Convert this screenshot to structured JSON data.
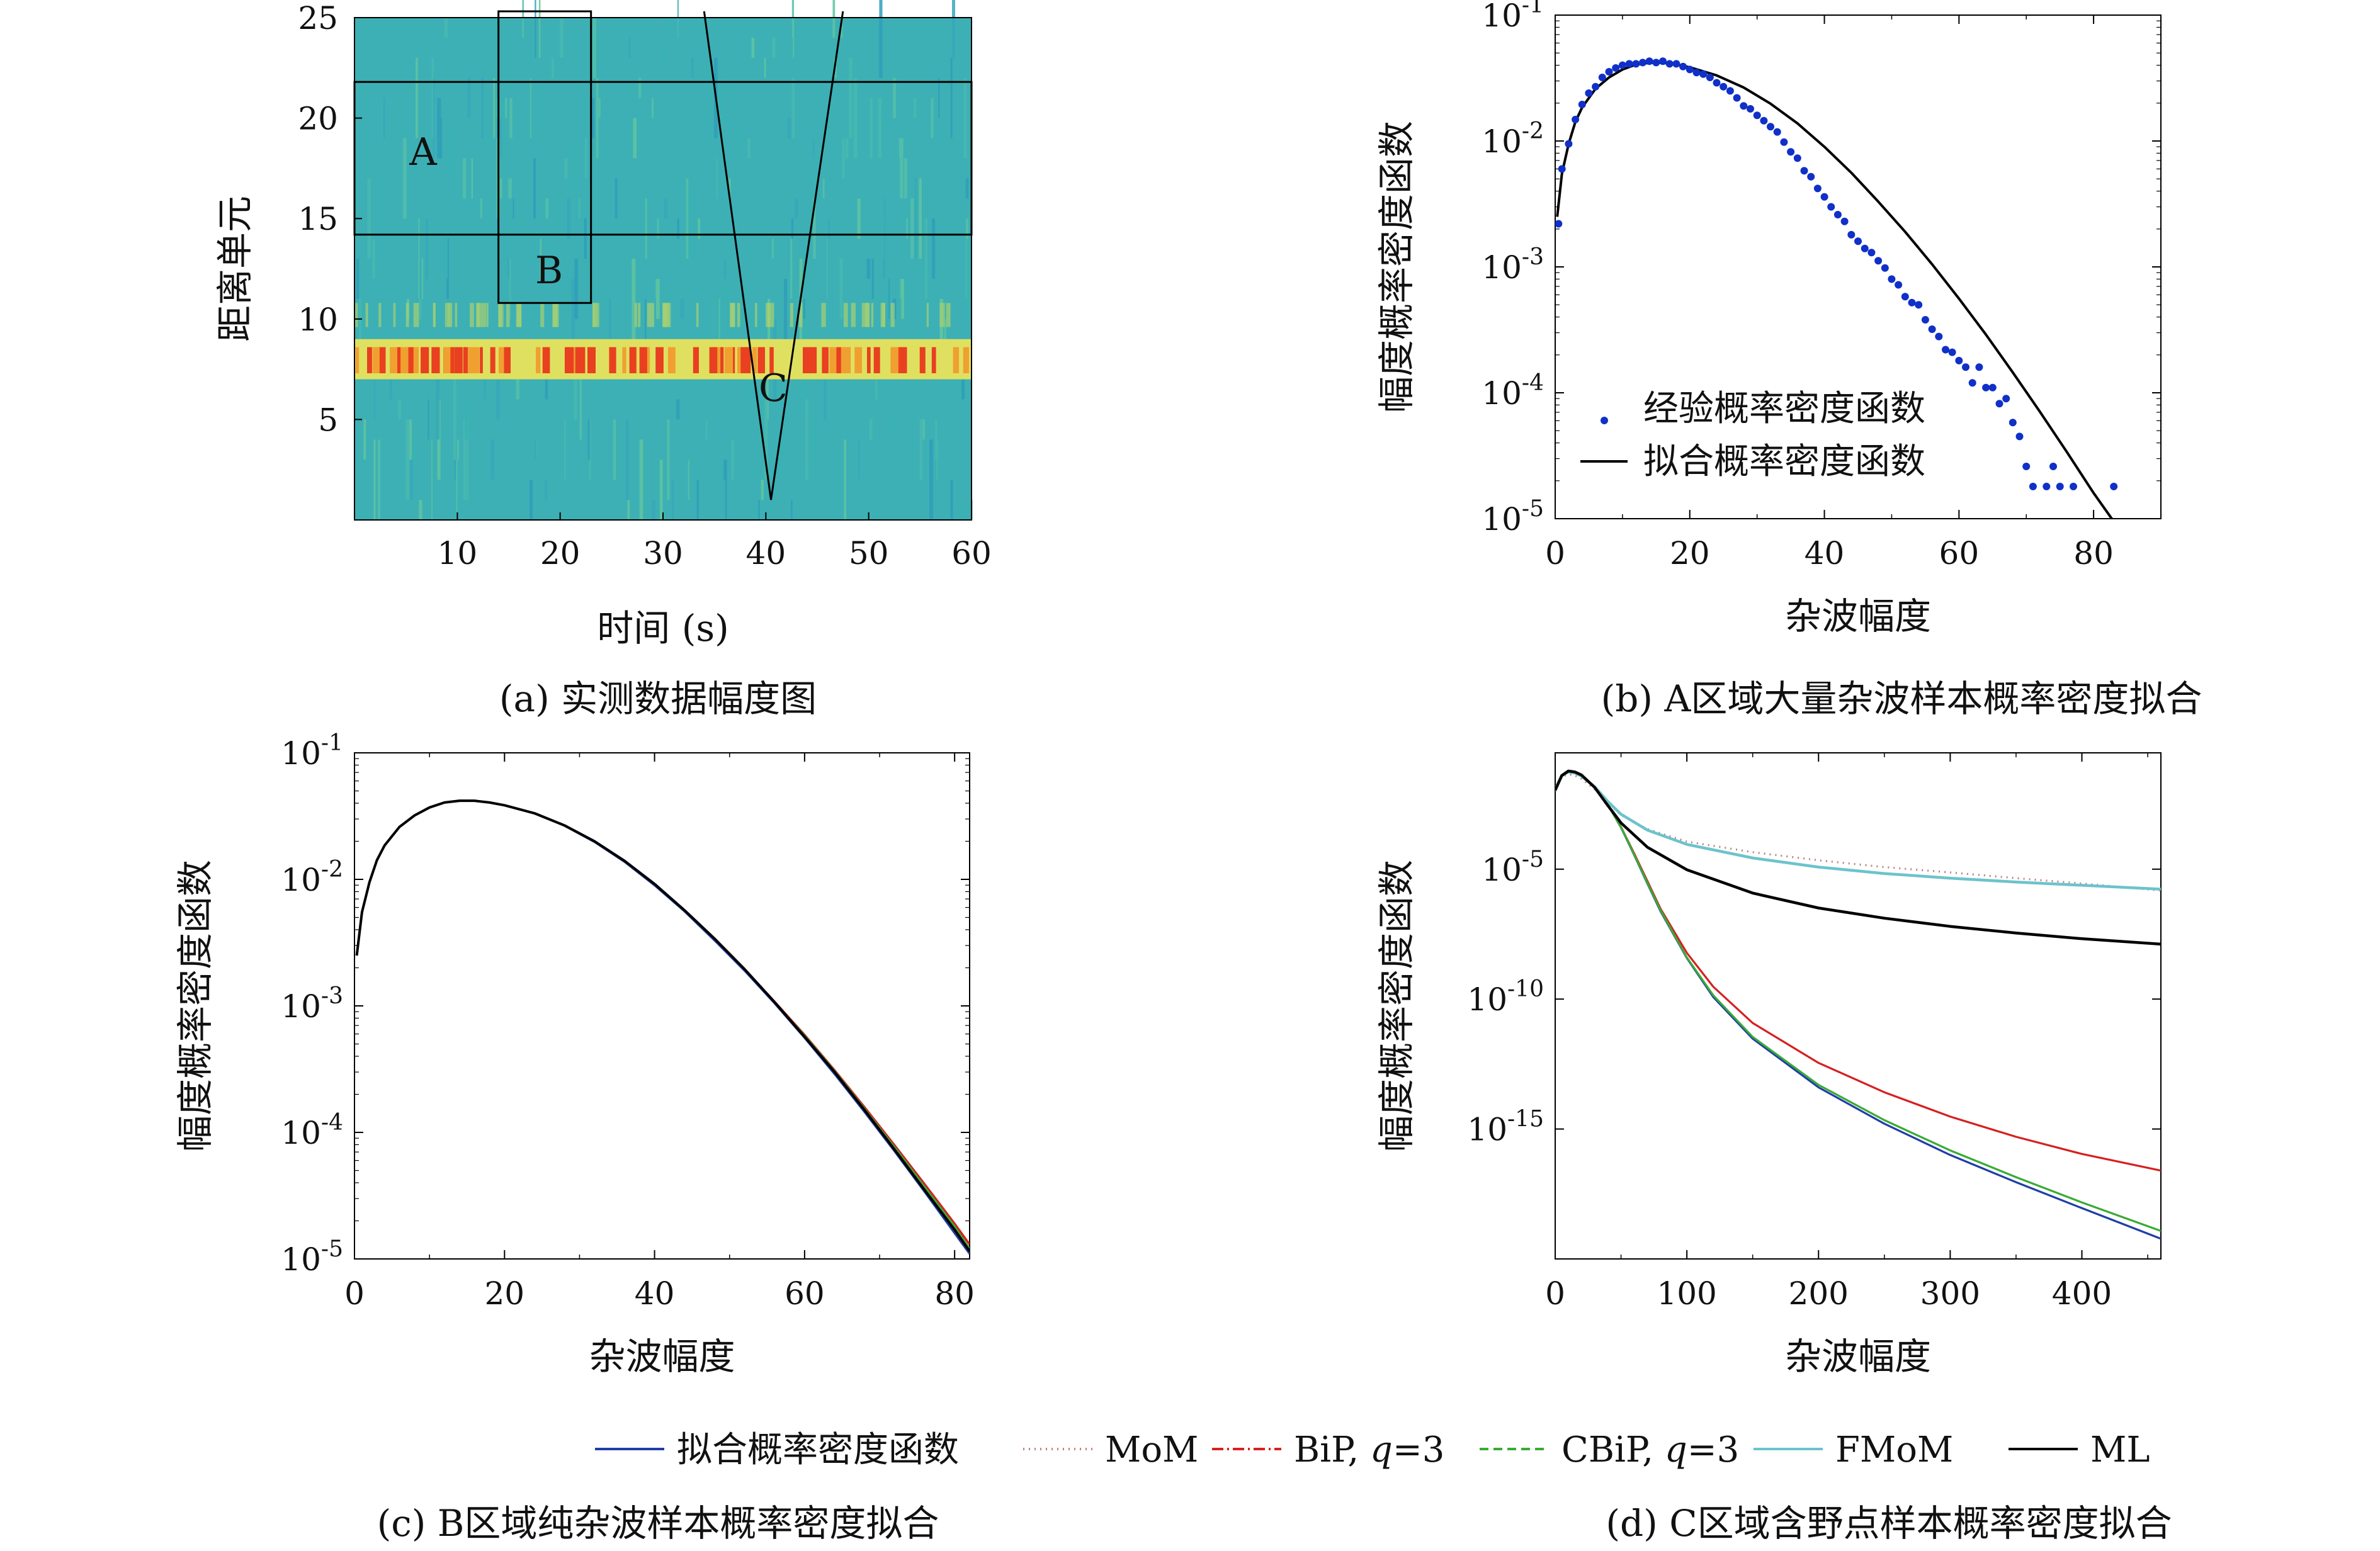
{
  "captions": {
    "a": "(a) 实测数据幅度图",
    "b": "(b)  A区域大量杂波样本概率密度拟合",
    "c": "(c) B区域纯杂波样本概率密度拟合",
    "d": "(d) C区域含野点样本概率密度拟合"
  },
  "legend_bottom": {
    "items": [
      {
        "label": "拟合概率密度函数",
        "color": "#1f3fa6",
        "dash": ""
      },
      {
        "label": "MoM",
        "color": "#c08080",
        "dash": "2,7"
      },
      {
        "label": "BiP, q=3",
        "label_main": "BiP, ",
        "label_q": "q",
        "label_rest": "=3",
        "color": "#d62020",
        "dash": "18,6,3,6"
      },
      {
        "label": "CBiP, q=3",
        "label_main": "CBiP, ",
        "label_q": "q",
        "label_rest": "=3",
        "color": "#3aaa35",
        "dash": "14,8"
      },
      {
        "label": "FMoM",
        "color": "#6cc3cc",
        "dash": ""
      },
      {
        "label": "ML",
        "color": "#000000",
        "dash": ""
      }
    ]
  },
  "chart_data": [
    {
      "id": "a",
      "type": "heatmap",
      "xlabel": "时间 (s)",
      "ylabel": "距离单元",
      "xlim": [
        0,
        60
      ],
      "ylim": [
        0,
        25
      ],
      "xticks": [
        10,
        20,
        30,
        40,
        50,
        60
      ],
      "yticks": [
        5,
        10,
        15,
        20,
        25
      ],
      "strong_band_rows": [
        7,
        8
      ],
      "regions": [
        {
          "label": "A",
          "shape": "rect",
          "x": [
            0,
            60
          ],
          "y": [
            14.2,
            21.8
          ]
        },
        {
          "label": "B",
          "shape": "rect",
          "x": [
            14,
            23
          ],
          "y": [
            10.8,
            25.5
          ]
        },
        {
          "label": "C",
          "shape": "triangle",
          "points": [
            [
              34,
              25.5
            ],
            [
              40.5,
              1
            ],
            [
              47.5,
              25.5
            ]
          ]
        }
      ],
      "colors": {
        "background": "#3cb0b5",
        "band_low": "#e0e060",
        "band_high": "#e84020"
      }
    },
    {
      "id": "b",
      "type": "scatter",
      "xlabel": "杂波幅度",
      "ylabel": "幅度概率密度函数",
      "xlim": [
        0,
        90
      ],
      "ylim": [
        1e-05,
        0.1
      ],
      "yscale": "log",
      "xticks": [
        0,
        20,
        40,
        60,
        80
      ],
      "ytick_exponents": [
        -5,
        -4,
        -3,
        -2,
        -1
      ],
      "legend_position": "lower-left",
      "series": [
        {
          "name": "经验概率密度函数",
          "type": "scatter",
          "color": "#1030c8",
          "x": [
            0.5,
            1,
            2,
            3,
            4,
            5,
            6,
            7,
            8,
            9,
            10,
            11,
            12,
            13,
            14,
            15,
            16,
            17,
            18,
            19,
            20,
            21,
            22,
            23,
            24,
            25,
            26,
            27,
            28,
            29,
            30,
            31,
            32,
            33,
            34,
            35,
            36,
            37,
            38,
            39,
            40,
            41,
            42,
            43,
            44,
            45,
            46,
            47,
            48,
            49,
            50,
            51,
            52,
            53,
            54,
            55,
            56,
            57,
            58,
            59,
            60,
            61,
            62,
            63,
            64,
            65,
            66,
            67,
            68,
            69,
            70,
            71,
            73,
            74,
            75,
            77,
            83
          ],
          "y": [
            0.0022,
            0.006,
            0.0095,
            0.0148,
            0.0195,
            0.024,
            0.027,
            0.032,
            0.0355,
            0.038,
            0.04,
            0.041,
            0.041,
            0.042,
            0.043,
            0.042,
            0.043,
            0.041,
            0.041,
            0.039,
            0.037,
            0.035,
            0.034,
            0.032,
            0.029,
            0.027,
            0.025,
            0.022,
            0.019,
            0.018,
            0.016,
            0.0145,
            0.013,
            0.0118,
            0.0098,
            0.0082,
            0.0073,
            0.0058,
            0.0052,
            0.0042,
            0.0036,
            0.003,
            0.0026,
            0.0023,
            0.0018,
            0.0016,
            0.0014,
            0.0013,
            0.00112,
            0.00098,
            0.0008,
            0.00072,
            0.00058,
            0.00052,
            0.0005,
            0.00038,
            0.00032,
            0.00028,
            0.00022,
            0.00021,
            0.00018,
            0.00016,
            0.00012,
            0.00016,
            0.00011,
            0.00011,
            8.2e-05,
            9e-05,
            5.8e-05,
            4.5e-05,
            2.6e-05,
            1.8e-05,
            1.8e-05,
            2.6e-05,
            1.8e-05,
            1.8e-05,
            1.8e-05
          ]
        },
        {
          "name": "拟合概率密度函数",
          "type": "line",
          "color": "#000000",
          "x": [
            0.3,
            1,
            2,
            3,
            4,
            6,
            8,
            10,
            12,
            14,
            16,
            18,
            20,
            24,
            28,
            32,
            36,
            40,
            44,
            48,
            52,
            56,
            60,
            64,
            68,
            72,
            76,
            80,
            83
          ],
          "y": [
            0.0025,
            0.0055,
            0.0095,
            0.0142,
            0.0185,
            0.026,
            0.032,
            0.037,
            0.0405,
            0.0418,
            0.0418,
            0.0405,
            0.0385,
            0.0332,
            0.0266,
            0.0198,
            0.0138,
            0.009,
            0.0056,
            0.0033,
            0.0019,
            0.00105,
            0.00056,
            0.00029,
            0.000145,
            7.1e-05,
            3.4e-05,
            1.6e-05,
            9.5e-06
          ]
        }
      ]
    },
    {
      "id": "c",
      "type": "line",
      "xlabel": "杂波幅度",
      "ylabel": "幅度概率密度函数",
      "xlim": [
        0,
        82
      ],
      "ylim": [
        1e-05,
        0.1
      ],
      "yscale": "log",
      "xticks": [
        0,
        20,
        40,
        60,
        80
      ],
      "ytick_exponents": [
        -5,
        -4,
        -3,
        -2,
        -1
      ],
      "x": [
        0.3,
        1,
        2,
        3,
        4,
        6,
        8,
        10,
        12,
        14,
        16,
        18,
        20,
        24,
        28,
        32,
        36,
        40,
        44,
        48,
        52,
        56,
        60,
        64,
        68,
        72,
        76,
        80,
        82
      ],
      "series": [
        {
          "name": "拟合概率密度函数",
          "color": "#1f3fa6",
          "y": [
            0.0025,
            0.0055,
            0.0095,
            0.0142,
            0.0185,
            0.026,
            0.032,
            0.037,
            0.0405,
            0.0418,
            0.0418,
            0.0405,
            0.0385,
            0.0332,
            0.0266,
            0.0198,
            0.0138,
            0.009,
            0.0056,
            0.0033,
            0.0019,
            0.00105,
            0.00056,
            0.00029,
            0.000145,
            7.1e-05,
            3.4e-05,
            1.6e-05,
            1.1e-05
          ]
        },
        {
          "name": "BiP, q=3",
          "color": "#d62020",
          "y": [
            0.0025,
            0.0055,
            0.0095,
            0.0142,
            0.0185,
            0.026,
            0.032,
            0.037,
            0.0405,
            0.0418,
            0.0418,
            0.0405,
            0.0385,
            0.0332,
            0.0266,
            0.0198,
            0.0138,
            0.009,
            0.0056,
            0.0033,
            0.00195,
            0.00108,
            0.00059,
            0.00031,
            0.000158,
            7.9e-05,
            3.9e-05,
            1.9e-05,
            1.3e-05
          ]
        },
        {
          "name": "CBiP, q=3",
          "color": "#3aaa35",
          "y": [
            0.0025,
            0.0055,
            0.0095,
            0.0142,
            0.0185,
            0.026,
            0.032,
            0.037,
            0.0405,
            0.0418,
            0.0418,
            0.0405,
            0.0385,
            0.0332,
            0.0266,
            0.0198,
            0.0138,
            0.009,
            0.0056,
            0.0033,
            0.00193,
            0.00107,
            0.00058,
            0.000305,
            0.000153,
            7.6e-05,
            3.7e-05,
            1.8e-05,
            1.2e-05
          ]
        },
        {
          "name": "ML",
          "color": "#000000",
          "y": [
            0.0025,
            0.0055,
            0.0095,
            0.0142,
            0.0185,
            0.026,
            0.032,
            0.037,
            0.0405,
            0.0418,
            0.0418,
            0.0405,
            0.0385,
            0.0333,
            0.0267,
            0.02,
            0.014,
            0.0092,
            0.0057,
            0.0034,
            0.00195,
            0.00107,
            0.00057,
            0.0003,
            0.00015,
            7.3e-05,
            3.5e-05,
            1.7e-05,
            1.15e-05
          ]
        }
      ]
    },
    {
      "id": "d",
      "type": "line",
      "xlabel": "杂波幅度",
      "ylabel": "幅度概率密度函数",
      "xlim": [
        0,
        460
      ],
      "ylim": [
        1e-20,
        0.3
      ],
      "yscale": "log",
      "xticks": [
        0,
        100,
        200,
        300,
        400
      ],
      "ytick_exponents": [
        -15,
        -10,
        -5
      ],
      "series": [
        {
          "name": "拟合概率密度函数",
          "color": "#1f3fa6",
          "x": [
            0,
            5,
            10,
            15,
            20,
            30,
            40,
            50,
            60,
            70,
            80,
            100,
            120,
            150,
            200,
            250,
            300,
            350,
            400,
            460
          ],
          "y": [
            0.01,
            0.04,
            0.06,
            0.055,
            0.04,
            0.015,
            0.003,
            0.0004,
            3.5e-05,
            2.8e-06,
            2.4e-07,
            3.8e-09,
            1.2e-10,
            3e-12,
            4e-14,
            1.6e-15,
            1e-16,
            9e-18,
            9e-19,
            6e-20
          ]
        },
        {
          "name": "MoM",
          "color": "#c08080",
          "dash": "2,7",
          "x": [
            0,
            5,
            10,
            15,
            20,
            30,
            40,
            50,
            70,
            100,
            150,
            200,
            250,
            300,
            350,
            400,
            460
          ],
          "y": [
            0.012,
            0.035,
            0.045,
            0.04,
            0.03,
            0.012,
            0.0035,
            0.0012,
            0.00035,
            0.000115,
            4.5e-05,
            2.2e-05,
            1.2e-05,
            7.5e-06,
            4.5e-06,
            2.8e-06,
            1.5e-06
          ]
        },
        {
          "name": "BiP, q=3",
          "color": "#d62020",
          "x": [
            0,
            5,
            10,
            15,
            20,
            30,
            40,
            50,
            60,
            70,
            80,
            100,
            120,
            150,
            200,
            250,
            300,
            350,
            400,
            460
          ],
          "y": [
            0.01,
            0.04,
            0.06,
            0.055,
            0.04,
            0.015,
            0.003,
            0.00042,
            4e-05,
            3.5e-06,
            3e-07,
            6e-09,
            3e-10,
            1.2e-11,
            3.5e-13,
            2.6e-14,
            3e-15,
            5e-16,
            1.1e-16,
            2.5e-17
          ]
        },
        {
          "name": "CBiP, q=3",
          "color": "#3aaa35",
          "x": [
            0,
            5,
            10,
            15,
            20,
            30,
            40,
            50,
            60,
            70,
            80,
            100,
            120,
            150,
            200,
            250,
            300,
            350,
            400,
            460
          ],
          "y": [
            0.01,
            0.04,
            0.06,
            0.055,
            0.04,
            0.015,
            0.003,
            0.00041,
            3.6e-05,
            3e-06,
            2.6e-07,
            4e-09,
            1.4e-10,
            3.5e-12,
            5e-14,
            2.2e-15,
            1.5e-16,
            1.4e-17,
            1.5e-18,
            1.2e-19
          ]
        },
        {
          "name": "FMoM",
          "color": "#6cc3cc",
          "x": [
            0,
            5,
            10,
            15,
            20,
            30,
            40,
            50,
            70,
            100,
            150,
            200,
            250,
            300,
            350,
            400,
            460
          ],
          "y": [
            0.012,
            0.04,
            0.055,
            0.05,
            0.038,
            0.015,
            0.004,
            0.0013,
            0.00032,
            9e-05,
            2.7e-05,
            1.2e-05,
            6.8e-06,
            4.5e-06,
            3.2e-06,
            2.4e-06,
            1.7e-06
          ]
        },
        {
          "name": "ML",
          "color": "#000000",
          "x": [
            0,
            5,
            10,
            15,
            20,
            30,
            40,
            50,
            70,
            100,
            150,
            200,
            250,
            300,
            350,
            400,
            460
          ],
          "y": [
            0.011,
            0.04,
            0.06,
            0.055,
            0.042,
            0.014,
            0.0028,
            0.0006,
            7e-05,
            9.5e-06,
            1.2e-06,
            3.2e-07,
            1.3e-07,
            6.3e-08,
            3.5e-08,
            2.1e-08,
            1.3e-08
          ]
        }
      ]
    }
  ]
}
